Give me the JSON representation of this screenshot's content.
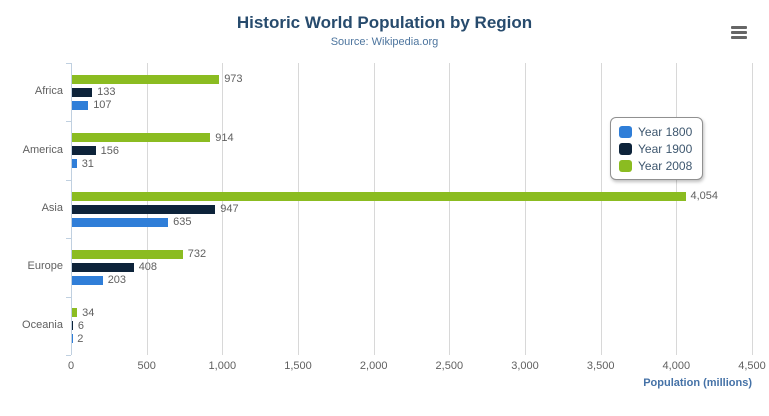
{
  "chart_data": {
    "type": "bar",
    "title": "Historic World Population by Region",
    "subtitle": "Source: Wikipedia.org",
    "categories": [
      "Africa",
      "America",
      "Asia",
      "Europe",
      "Oceania"
    ],
    "series": [
      {
        "name": "Year 1800",
        "color": "#2f7ed8",
        "values": [
          107,
          31,
          635,
          203,
          2
        ]
      },
      {
        "name": "Year 1900",
        "color": "#0d233a",
        "values": [
          133,
          156,
          947,
          408,
          6
        ]
      },
      {
        "name": "Year 2008",
        "color": "#8bbc21",
        "values": [
          973,
          914,
          4054,
          732,
          34
        ]
      }
    ],
    "display_order_top_to_bottom": [
      "Year 2008",
      "Year 1900",
      "Year 1800"
    ],
    "data_labels": {
      "Year 1800": [
        "107",
        "31",
        "635",
        "203",
        "2"
      ],
      "Year 1900": [
        "133",
        "156",
        "947",
        "408",
        "6"
      ],
      "Year 2008": [
        "973",
        "914",
        "4,054",
        "732",
        "34"
      ]
    },
    "xlabel": "Population (millions)",
    "xlim": [
      0,
      4500
    ],
    "x_ticks": [
      0,
      500,
      1000,
      1500,
      2000,
      2500,
      3000,
      3500,
      4000,
      4500
    ],
    "x_tick_labels": [
      "0",
      "500",
      "1,000",
      "1,500",
      "2,000",
      "2,500",
      "3,000",
      "3,500",
      "4,000",
      "4,500"
    ],
    "grid": true,
    "legend_position": "right-center"
  },
  "export_menu": {
    "icon": "hamburger-menu-icon"
  },
  "colors": {
    "background": "#ffffff",
    "title": "#274b6d",
    "subtitle": "#4d759e",
    "axis_title": "#4572a7",
    "tick_label": "#606060",
    "category_label": "#606060",
    "data_label": "#606060",
    "gridline": "#d8d8d8",
    "axis_line": "#c0d0e0",
    "legend_border": "#909090",
    "legend_text": "#3e576f",
    "menu_icon": "#666666"
  }
}
